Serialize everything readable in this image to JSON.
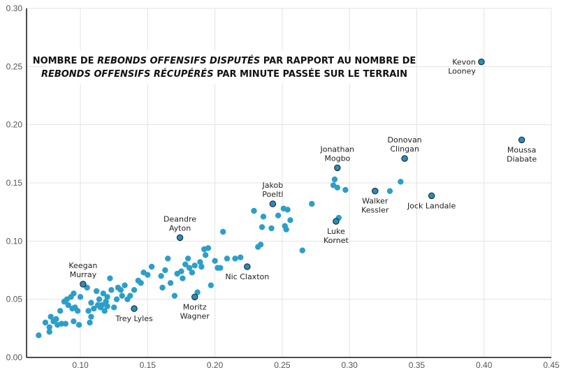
{
  "chart_data": {
    "type": "scatter",
    "title_lines": [
      [
        {
          "text": "NOMBRE DE ",
          "italic": false
        },
        {
          "text": "REBONDS OFFENSIFS DISPUTÉS",
          "italic": true
        },
        {
          "text": " PAR RAPPORT AU NOMBRE DE",
          "italic": false
        }
      ],
      [
        {
          "text": "REBONDS OFFENSIFS RÉCUPÉRÉS",
          "italic": true
        },
        {
          "text": " PAR MINUTE PASSÉE SUR LE TERRAIN",
          "italic": false
        }
      ]
    ],
    "xlabel": "",
    "ylabel": "",
    "xlim": [
      0.06,
      0.45
    ],
    "ylim": [
      0.0,
      0.3
    ],
    "xticks": [
      "0.10",
      "0.15",
      "0.20",
      "0.25",
      "0.30",
      "0.35",
      "0.40",
      "0.45"
    ],
    "xtick_values": [
      0.1,
      0.15,
      0.2,
      0.25,
      0.3,
      0.35,
      0.4,
      0.45
    ],
    "yticks": [
      "0.00",
      "0.05",
      "0.10",
      "0.15",
      "0.20",
      "0.25",
      "0.30"
    ],
    "ytick_values": [
      0.0,
      0.05,
      0.1,
      0.15,
      0.2,
      0.25,
      0.3
    ],
    "grid": true,
    "legend": "none",
    "colors": {
      "point": "#2b9fc8",
      "highlight": "#2b8cb5",
      "highlight_stroke": "#1a2a33",
      "grid": "#e3e3e3",
      "axis": "#111111"
    },
    "series": [
      {
        "name": "players",
        "points": [
          [
            0.069,
            0.019
          ],
          [
            0.074,
            0.03
          ],
          [
            0.077,
            0.026
          ],
          [
            0.077,
            0.022
          ],
          [
            0.078,
            0.035
          ],
          [
            0.08,
            0.031
          ],
          [
            0.082,
            0.033
          ],
          [
            0.083,
            0.028
          ],
          [
            0.085,
            0.04
          ],
          [
            0.086,
            0.029
          ],
          [
            0.088,
            0.048
          ],
          [
            0.089,
            0.029
          ],
          [
            0.09,
            0.05
          ],
          [
            0.091,
            0.045
          ],
          [
            0.093,
            0.052
          ],
          [
            0.094,
            0.042
          ],
          [
            0.095,
            0.055
          ],
          [
            0.095,
            0.031
          ],
          [
            0.096,
            0.043
          ],
          [
            0.098,
            0.04
          ],
          [
            0.099,
            0.028
          ],
          [
            0.1,
            0.052
          ],
          [
            0.105,
            0.06
          ],
          [
            0.106,
            0.04
          ],
          [
            0.107,
            0.03
          ],
          [
            0.108,
            0.047
          ],
          [
            0.108,
            0.035
          ],
          [
            0.11,
            0.042
          ],
          [
            0.112,
            0.057
          ],
          [
            0.113,
            0.045
          ],
          [
            0.114,
            0.05
          ],
          [
            0.115,
            0.043
          ],
          [
            0.116,
            0.045
          ],
          [
            0.117,
            0.055
          ],
          [
            0.118,
            0.04
          ],
          [
            0.119,
            0.048
          ],
          [
            0.12,
            0.052
          ],
          [
            0.12,
            0.044
          ],
          [
            0.122,
            0.068
          ],
          [
            0.123,
            0.058
          ],
          [
            0.125,
            0.043
          ],
          [
            0.127,
            0.05
          ],
          [
            0.128,
            0.06
          ],
          [
            0.13,
            0.058
          ],
          [
            0.131,
            0.053
          ],
          [
            0.133,
            0.062
          ],
          [
            0.135,
            0.05
          ],
          [
            0.137,
            0.053
          ],
          [
            0.14,
            0.058
          ],
          [
            0.143,
            0.066
          ],
          [
            0.145,
            0.064
          ],
          [
            0.147,
            0.073
          ],
          [
            0.15,
            0.071
          ],
          [
            0.153,
            0.078
          ],
          [
            0.16,
            0.07
          ],
          [
            0.161,
            0.06
          ],
          [
            0.163,
            0.075
          ],
          [
            0.165,
            0.085
          ],
          [
            0.167,
            0.064
          ],
          [
            0.17,
            0.053
          ],
          [
            0.172,
            0.072
          ],
          [
            0.175,
            0.074
          ],
          [
            0.176,
            0.068
          ],
          [
            0.178,
            0.08
          ],
          [
            0.18,
            0.085
          ],
          [
            0.181,
            0.077
          ],
          [
            0.183,
            0.073
          ],
          [
            0.185,
            0.079
          ],
          [
            0.187,
            0.056
          ],
          [
            0.189,
            0.082
          ],
          [
            0.19,
            0.078
          ],
          [
            0.192,
            0.093
          ],
          [
            0.193,
            0.088
          ],
          [
            0.195,
            0.094
          ],
          [
            0.197,
            0.062
          ],
          [
            0.2,
            0.083
          ],
          [
            0.202,
            0.077
          ],
          [
            0.204,
            0.077
          ],
          [
            0.206,
            0.108
          ],
          [
            0.209,
            0.085
          ],
          [
            0.215,
            0.085
          ],
          [
            0.219,
            0.086
          ],
          [
            0.229,
            0.126
          ],
          [
            0.232,
            0.095
          ],
          [
            0.234,
            0.097
          ],
          [
            0.235,
            0.112
          ],
          [
            0.236,
            0.121
          ],
          [
            0.242,
            0.111
          ],
          [
            0.247,
            0.122
          ],
          [
            0.251,
            0.128
          ],
          [
            0.252,
            0.113
          ],
          [
            0.253,
            0.11
          ],
          [
            0.254,
            0.127
          ],
          [
            0.256,
            0.118
          ],
          [
            0.265,
            0.092
          ],
          [
            0.272,
            0.132
          ],
          [
            0.288,
            0.148
          ],
          [
            0.289,
            0.153
          ],
          [
            0.291,
            0.146
          ],
          [
            0.292,
            0.12
          ],
          [
            0.297,
            0.144
          ],
          [
            0.33,
            0.143
          ],
          [
            0.338,
            0.151
          ]
        ]
      }
    ],
    "labeled_points": [
      {
        "name": "Kevon Looney",
        "lines": [
          "Kevon",
          "Looney"
        ],
        "x": 0.398,
        "y": 0.254,
        "label_pos": "left"
      },
      {
        "name": "Moussa Diabate",
        "lines": [
          "Moussa",
          "Diabate"
        ],
        "x": 0.428,
        "y": 0.187,
        "label_pos": "below"
      },
      {
        "name": "Donovan Clingan",
        "lines": [
          "Donovan",
          "Clingan"
        ],
        "x": 0.341,
        "y": 0.171,
        "label_pos": "above"
      },
      {
        "name": "Jonathan Mogbo",
        "lines": [
          "Jonathan",
          "Mogbo"
        ],
        "x": 0.291,
        "y": 0.163,
        "label_pos": "above"
      },
      {
        "name": "Walker Kessler",
        "lines": [
          "Walker",
          "Kessler"
        ],
        "x": 0.319,
        "y": 0.143,
        "label_pos": "below"
      },
      {
        "name": "Jock Landale",
        "lines": [
          "Jock Landale"
        ],
        "x": 0.361,
        "y": 0.139,
        "label_pos": "below"
      },
      {
        "name": "Jakob Poeltl",
        "lines": [
          "Jakob",
          "Poeltl"
        ],
        "x": 0.243,
        "y": 0.132,
        "label_pos": "above"
      },
      {
        "name": "Luke Kornet",
        "lines": [
          "Luke",
          "Kornet"
        ],
        "x": 0.29,
        "y": 0.117,
        "label_pos": "below"
      },
      {
        "name": "Deandre Ayton",
        "lines": [
          "Deandre",
          "Ayton"
        ],
        "x": 0.174,
        "y": 0.103,
        "label_pos": "above"
      },
      {
        "name": "Nic Claxton",
        "lines": [
          "Nic Claxton"
        ],
        "x": 0.224,
        "y": 0.078,
        "label_pos": "below"
      },
      {
        "name": "Keegan Murray",
        "lines": [
          "Keegan",
          "Murray"
        ],
        "x": 0.102,
        "y": 0.063,
        "label_pos": "above"
      },
      {
        "name": "Moritz Wagner",
        "lines": [
          "Moritz",
          "Wagner"
        ],
        "x": 0.185,
        "y": 0.052,
        "label_pos": "below"
      },
      {
        "name": "Trey Lyles",
        "lines": [
          "Trey Lyles"
        ],
        "x": 0.14,
        "y": 0.042,
        "label_pos": "below"
      }
    ]
  }
}
